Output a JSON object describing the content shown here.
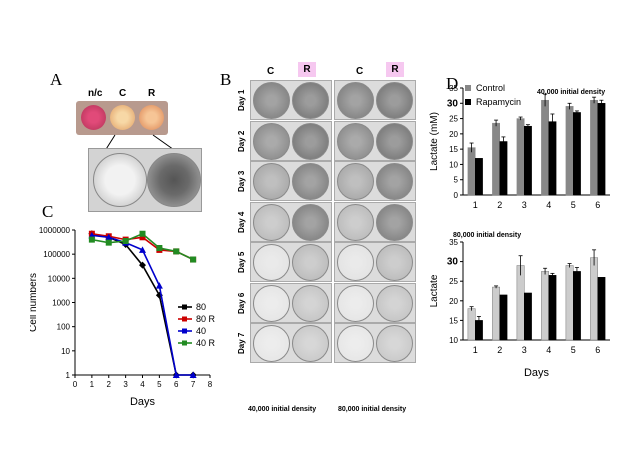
{
  "panels": {
    "A": "A",
    "B": "B",
    "C": "C",
    "D": "D"
  },
  "panelA": {
    "labels": [
      "n/c",
      "C",
      "R"
    ]
  },
  "panelB": {
    "col_labels": [
      "C",
      "R",
      "C",
      "R"
    ],
    "days": [
      "Day 1",
      "Day 2",
      "Day 3",
      "Day 4",
      "Day 5",
      "Day 6",
      "Day 7"
    ],
    "captions": [
      "40,000 initial density",
      "80,000 initial density"
    ]
  },
  "panelC": {
    "chart_data": {
      "type": "line",
      "ylabel": "Cell numbers",
      "xlabel": "Days",
      "yscale": "log",
      "ylim": [
        1,
        1000000
      ],
      "xlim": [
        0,
        8
      ],
      "yticks": [
        "1",
        "10",
        "100",
        "1000",
        "10000",
        "100000",
        "1000000"
      ],
      "xticks": [
        "0",
        "1",
        "2",
        "3",
        "4",
        "5",
        "6",
        "7",
        "8"
      ],
      "series": [
        {
          "name": "80",
          "color": "#000000",
          "marker": "diamond",
          "x": [
            1,
            2,
            3,
            4,
            5,
            6,
            7
          ],
          "y": [
            700000,
            500000,
            250000,
            35000,
            2000,
            1,
            1
          ]
        },
        {
          "name": "80 R",
          "color": "#cc0000",
          "marker": "square",
          "x": [
            1,
            2,
            3,
            4,
            5,
            6,
            7
          ],
          "y": [
            700000,
            550000,
            400000,
            500000,
            150000,
            130000,
            60000
          ]
        },
        {
          "name": "40",
          "color": "#0000cc",
          "marker": "triangle",
          "x": [
            1,
            2,
            3,
            4,
            5,
            6,
            7
          ],
          "y": [
            600000,
            500000,
            300000,
            150000,
            5000,
            1,
            1
          ]
        },
        {
          "name": "40 R",
          "color": "#228b22",
          "marker": "square",
          "x": [
            1,
            2,
            3,
            4,
            5,
            6,
            7
          ],
          "y": [
            400000,
            300000,
            350000,
            700000,
            180000,
            130000,
            60000
          ]
        }
      ]
    }
  },
  "panelD": {
    "chart_data": [
      {
        "type": "bar",
        "title": "40,000 initial density",
        "ylabel": "Lactate (mM)",
        "categories": [
          "1",
          "2",
          "3",
          "4",
          "5",
          "6"
        ],
        "ylim": [
          0,
          35
        ],
        "yticks": [
          "0",
          "5",
          "10",
          "15",
          "20",
          "25",
          "30",
          "35"
        ],
        "series": [
          {
            "name": "Control",
            "color": "#888888",
            "values": [
              15.5,
              23.5,
              25,
              31,
              29,
              31
            ],
            "errors": [
              1.5,
              1,
              0.5,
              2,
              1,
              1
            ]
          },
          {
            "name": "Rapamycin",
            "color": "#000000",
            "values": [
              12,
              17.5,
              22.5,
              24,
              27,
              30
            ],
            "errors": [
              0,
              1.5,
              0.5,
              2.5,
              0.5,
              1
            ]
          }
        ]
      },
      {
        "type": "bar",
        "title": "80,000 initial density",
        "ylabel": "Lactate",
        "xlabel": "Days",
        "categories": [
          "1",
          "2",
          "3",
          "4",
          "5",
          "6"
        ],
        "ylim": [
          10,
          35
        ],
        "yticks": [
          "10",
          "15",
          "20",
          "25",
          "30",
          "35"
        ],
        "series": [
          {
            "name": "Control",
            "color": "#cccccc",
            "values": [
              18,
              23.5,
              29,
              27.5,
              29,
              31
            ],
            "errors": [
              0.5,
              0.3,
              2.5,
              0.8,
              0.5,
              2
            ]
          },
          {
            "name": "Rapamycin",
            "color": "#000000",
            "values": [
              15,
              21.5,
              22,
              26.5,
              27.5,
              26
            ],
            "errors": [
              1,
              0,
              0,
              0.5,
              1,
              0
            ]
          }
        ]
      }
    ]
  }
}
